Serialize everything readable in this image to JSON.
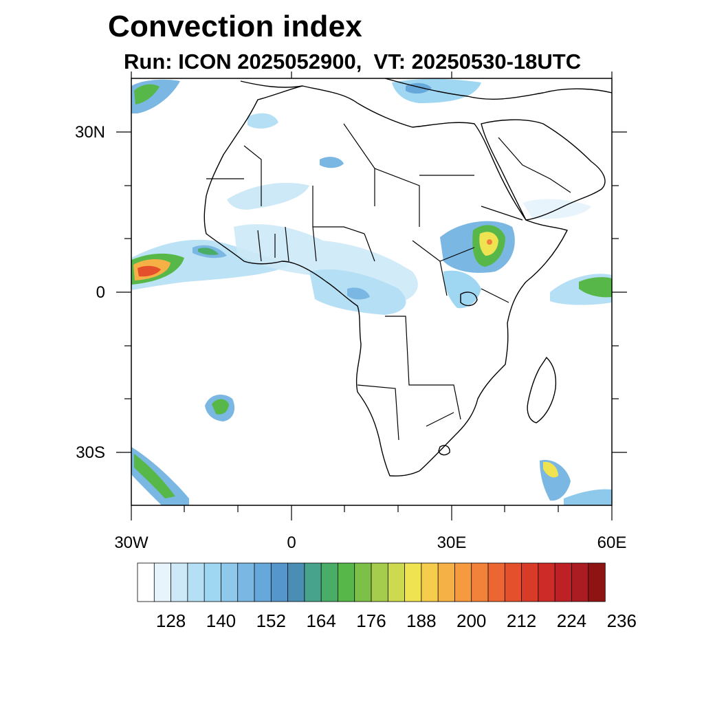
{
  "header": {
    "title": "Convection index",
    "subtitle": "Run: ICON 2025052900,  VT: 20250530-18UTC"
  },
  "map": {
    "lat_labels": [
      "30N",
      "0",
      "30S"
    ],
    "lon_labels": [
      "30W",
      "0",
      "30E",
      "60E"
    ],
    "extent": {
      "lon": [
        -30,
        60
      ],
      "lat": [
        -40,
        40
      ]
    }
  },
  "colorbar": {
    "colors": [
      "#ffffff",
      "#e8f4fb",
      "#cde9f7",
      "#b4dff4",
      "#9fd6f1",
      "#8ec9ec",
      "#7ab7e3",
      "#66a8da",
      "#5596cd",
      "#4a8fb3",
      "#47a38c",
      "#4aad67",
      "#57b849",
      "#7cc048",
      "#a5cc4d",
      "#cdd94f",
      "#efe352",
      "#f6cc4c",
      "#f6b146",
      "#f69a3f",
      "#f2813a",
      "#ec6633",
      "#e44f2c",
      "#d93b29",
      "#cc2b28",
      "#bd2125",
      "#ab1b22",
      "#8e1414"
    ],
    "tick_labels": [
      "128",
      "140",
      "152",
      "164",
      "176",
      "188",
      "200",
      "212",
      "224",
      "236"
    ]
  }
}
